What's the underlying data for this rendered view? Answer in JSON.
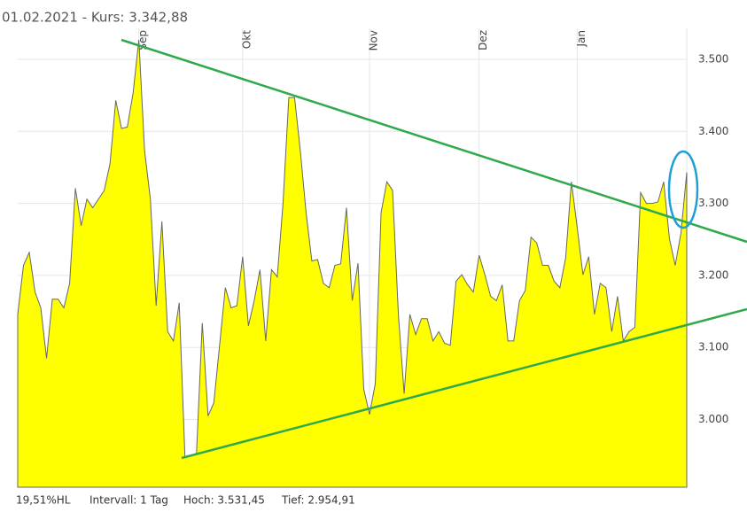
{
  "chart_data": {
    "type": "area",
    "title": "01.02.2021  -  Kurs: 3.342,88",
    "footer": [
      "19,51%HL",
      "Intervall: 1 Tag",
      "Hoch: 3.531,45",
      "Tief: 2.954,91"
    ],
    "categories": [
      null,
      null,
      null,
      null,
      null,
      null,
      null,
      null,
      null,
      null,
      null,
      null,
      null,
      null,
      null,
      null,
      null,
      null,
      null,
      null,
      null,
      "Sep",
      null,
      null,
      null,
      null,
      null,
      null,
      null,
      null,
      null,
      null,
      null,
      null,
      null,
      null,
      null,
      null,
      null,
      "Okt",
      null,
      null,
      null,
      null,
      null,
      null,
      null,
      null,
      null,
      null,
      null,
      null,
      null,
      null,
      null,
      null,
      null,
      null,
      null,
      null,
      null,
      "Nov",
      null,
      null,
      null,
      null,
      null,
      null,
      null,
      null,
      null,
      null,
      null,
      null,
      null,
      null,
      null,
      null,
      null,
      null,
      "Dez",
      null,
      null,
      null,
      null,
      null,
      null,
      null,
      null,
      null,
      null,
      null,
      null,
      null,
      null,
      null,
      null,
      "Jan",
      null,
      null,
      null,
      null,
      null,
      null,
      null,
      null,
      null,
      null,
      null,
      null,
      null,
      null,
      null,
      null,
      null,
      null,
      null
    ],
    "values": [
      3146,
      3214,
      3232,
      3177,
      3155,
      3085,
      3167,
      3167,
      3155,
      3189,
      3321,
      3269,
      3306,
      3294,
      3306,
      3318,
      3355,
      3443,
      3404,
      3406,
      3453,
      3527,
      3373,
      3306,
      3158,
      3275,
      3122,
      3109,
      3162,
      2947,
      2950,
      2953,
      3134,
      3005,
      3023,
      3103,
      3183,
      3155,
      3158,
      3226,
      3130,
      3165,
      3208,
      3109,
      3208,
      3198,
      3300,
      3447,
      3447,
      3373,
      3287,
      3220,
      3222,
      3189,
      3183,
      3214,
      3216,
      3294,
      3165,
      3217,
      3042,
      3007,
      3050,
      3287,
      3330,
      3318,
      3146,
      3036,
      3146,
      3118,
      3140,
      3140,
      3109,
      3122,
      3106,
      3103,
      3192,
      3201,
      3187,
      3177,
      3228,
      3201,
      3171,
      3165,
      3187,
      3109,
      3109,
      3165,
      3179,
      3253,
      3245,
      3214,
      3214,
      3192,
      3183,
      3224,
      3330,
      3267,
      3201,
      3226,
      3146,
      3189,
      3183,
      3122,
      3171,
      3109,
      3122,
      3128,
      3315,
      3300,
      3300,
      3302,
      3330,
      3251,
      3214,
      3259,
      3343
    ],
    "color": "#ffff00",
    "line_color": "#666666",
    "ylim": [
      2906,
      3543
    ],
    "yticks": [
      {
        "value": 3000,
        "label": "3.000"
      },
      {
        "value": 3100,
        "label": "3.100"
      },
      {
        "value": 3200,
        "label": "3.200"
      },
      {
        "value": 3300,
        "label": "3.300"
      },
      {
        "value": 3400,
        "label": "3.400"
      },
      {
        "value": 3500,
        "label": "3.500"
      }
    ],
    "grid": true
  }
}
